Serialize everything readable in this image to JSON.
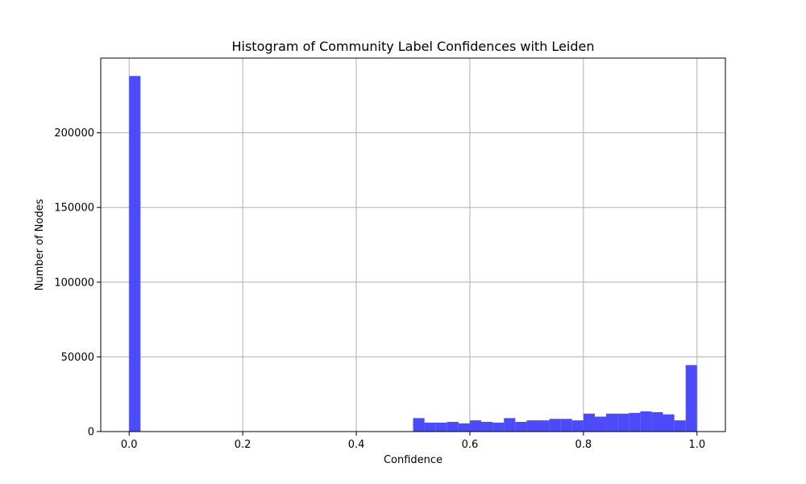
{
  "chart_data": {
    "type": "bar",
    "title": "Histogram of Community Label Confidences with Leiden",
    "xlabel": "Confidence",
    "ylabel": "Number of Nodes",
    "xlim": [
      -0.05,
      1.05
    ],
    "ylim": [
      0,
      250000
    ],
    "xticks": [
      0.0,
      0.2,
      0.4,
      0.6,
      0.8,
      1.0
    ],
    "xtick_labels": [
      "0.0",
      "0.2",
      "0.4",
      "0.6",
      "0.8",
      "1.0"
    ],
    "yticks": [
      0,
      50000,
      100000,
      150000,
      200000
    ],
    "ytick_labels": [
      "0",
      "50000",
      "100000",
      "150000",
      "200000"
    ],
    "grid": true,
    "bar_color": "#4b4bfb",
    "bin_width": 0.02,
    "bins": [
      {
        "x": 0.0,
        "count": 238000
      },
      {
        "x": 0.5,
        "count": 9000
      },
      {
        "x": 0.52,
        "count": 6000
      },
      {
        "x": 0.54,
        "count": 6000
      },
      {
        "x": 0.56,
        "count": 6500
      },
      {
        "x": 0.58,
        "count": 5500
      },
      {
        "x": 0.6,
        "count": 7500
      },
      {
        "x": 0.62,
        "count": 6500
      },
      {
        "x": 0.64,
        "count": 6000
      },
      {
        "x": 0.66,
        "count": 9000
      },
      {
        "x": 0.68,
        "count": 6500
      },
      {
        "x": 0.7,
        "count": 7500
      },
      {
        "x": 0.72,
        "count": 7500
      },
      {
        "x": 0.74,
        "count": 8500
      },
      {
        "x": 0.76,
        "count": 8500
      },
      {
        "x": 0.78,
        "count": 7500
      },
      {
        "x": 0.8,
        "count": 12000
      },
      {
        "x": 0.82,
        "count": 10000
      },
      {
        "x": 0.84,
        "count": 12000
      },
      {
        "x": 0.86,
        "count": 12000
      },
      {
        "x": 0.88,
        "count": 12500
      },
      {
        "x": 0.9,
        "count": 13500
      },
      {
        "x": 0.92,
        "count": 13000
      },
      {
        "x": 0.94,
        "count": 11500
      },
      {
        "x": 0.96,
        "count": 7500
      },
      {
        "x": 0.98,
        "count": 44500
      }
    ]
  }
}
